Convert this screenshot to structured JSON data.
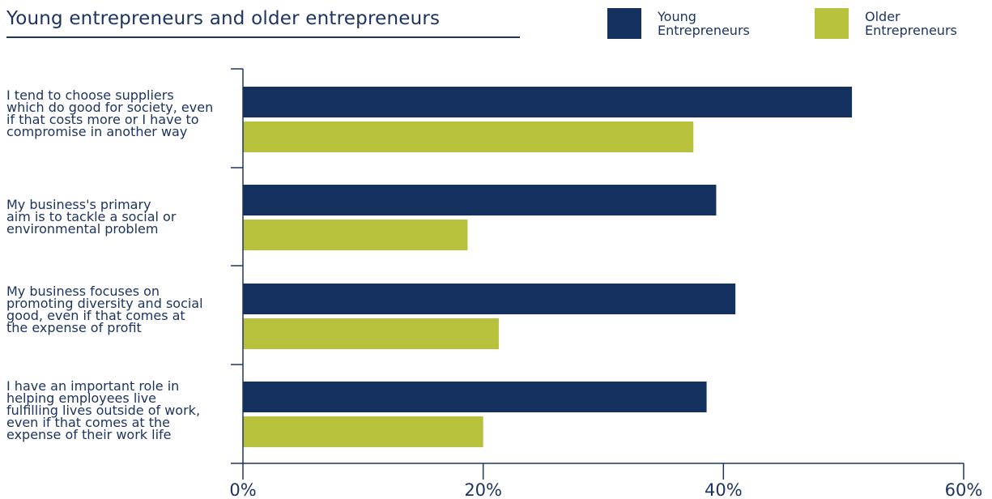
{
  "chart_data": {
    "type": "bar",
    "orientation": "horizontal",
    "title": "Young entrepreneurs and older entrepreneurs",
    "categories": [
      "I tend to choose suppliers\nwhich do good for society, even\nif that costs more or I have to\ncompromise in another way",
      "My business's primary\naim is to tackle a social or\nenvironmental problem",
      "My business focuses on\npromoting diversity and social\ngood, even if that comes at\nthe expense of profit",
      "I have an important role in\nhelping employees live\nfulfilling lives outside of work,\neven if that comes at the\nexpense of their work life"
    ],
    "series": [
      {
        "name": "Young\nEntrepreneurs",
        "color": "#14305f",
        "values": [
          50.7,
          39.4,
          41.0,
          38.6
        ]
      },
      {
        "name": "Older\nEntrepreneurs",
        "color": "#b8c13b",
        "values": [
          37.5,
          18.7,
          21.3,
          20.0
        ]
      }
    ],
    "xlim": [
      0,
      60
    ],
    "xticks": [
      "0%",
      "20%",
      "40%",
      "60%"
    ],
    "xlabel": "",
    "ylabel": "",
    "grid": false,
    "legend_position": "top-right"
  }
}
